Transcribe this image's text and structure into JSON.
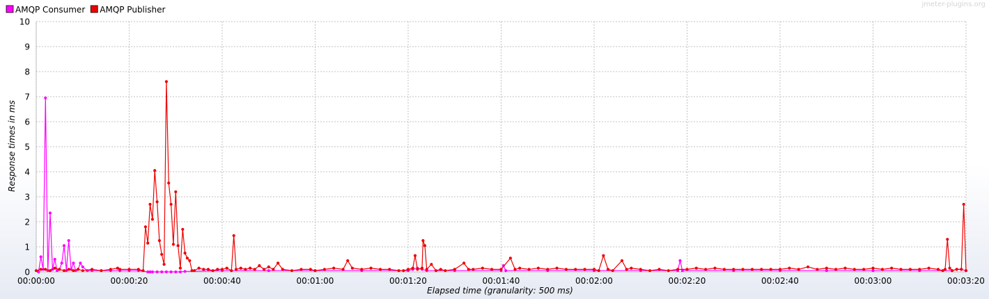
{
  "watermark": "jmeter-plugins.org",
  "chart_data": {
    "type": "line",
    "xlabel": "Elapsed time (granularity: 500 ms)",
    "ylabel": "Response times in ms",
    "ylim": [
      0,
      10
    ],
    "yticks": [
      0,
      1,
      2,
      3,
      4,
      5,
      6,
      7,
      8,
      9,
      10
    ],
    "xlim_seconds": [
      0,
      200
    ],
    "xticks": [
      "00:00:00",
      "00:00:20",
      "00:00:40",
      "00:01:00",
      "00:01:20",
      "00:01:40",
      "00:02:00",
      "00:02:20",
      "00:02:40",
      "00:03:00",
      "00:03:20"
    ],
    "grid": true,
    "legend_position": "top-left",
    "series": [
      {
        "name": "AMQP Consumer",
        "color": "#ff00ff",
        "points": [
          [
            0.5,
            0
          ],
          [
            1,
            0.6
          ],
          [
            1.5,
            0.1
          ],
          [
            2,
            6.95
          ],
          [
            2.5,
            0.05
          ],
          [
            3,
            2.35
          ],
          [
            3.5,
            0.1
          ],
          [
            4,
            0.5
          ],
          [
            4.5,
            0.05
          ],
          [
            5,
            0.1
          ],
          [
            5.5,
            0.35
          ],
          [
            6,
            1.05
          ],
          [
            6.5,
            0.05
          ],
          [
            7,
            1.25
          ],
          [
            7.5,
            0.1
          ],
          [
            8,
            0.35
          ],
          [
            8.5,
            0.05
          ],
          [
            9,
            0.1
          ],
          [
            9.5,
            0.35
          ],
          [
            10,
            0.2
          ],
          [
            11,
            0.05
          ],
          [
            12,
            0.05
          ],
          [
            14,
            0.05
          ],
          [
            16,
            0.05
          ],
          [
            18,
            0.05
          ],
          [
            20,
            0.05
          ],
          [
            22,
            0.05
          ],
          [
            24,
            0
          ],
          [
            24.5,
            0
          ],
          [
            25,
            0
          ],
          [
            26,
            0
          ],
          [
            27,
            0
          ],
          [
            28,
            0
          ],
          [
            29,
            0
          ],
          [
            30,
            0
          ],
          [
            31,
            0
          ],
          [
            32,
            0.02
          ],
          [
            40,
            0.05
          ],
          [
            50,
            0.05
          ],
          [
            60,
            0.05
          ],
          [
            70,
            0.05
          ],
          [
            80,
            0.05
          ],
          [
            81,
            0.1
          ],
          [
            82,
            0.15
          ],
          [
            83,
            0.1
          ],
          [
            84,
            0.05
          ],
          [
            90,
            0.05
          ],
          [
            100,
            0.05
          ],
          [
            100.5,
            0.25
          ],
          [
            101,
            0.05
          ],
          [
            110,
            0.05
          ],
          [
            120,
            0.05
          ],
          [
            130,
            0.05
          ],
          [
            138,
            0.05
          ],
          [
            138.5,
            0.45
          ],
          [
            139,
            0.05
          ],
          [
            150,
            0.05
          ],
          [
            160,
            0.05
          ],
          [
            170,
            0.05
          ],
          [
            180,
            0.05
          ],
          [
            190,
            0.05
          ],
          [
            197,
            0.05
          ],
          [
            198,
            0.1
          ],
          [
            199,
            0.1
          ],
          [
            200,
            0.05
          ]
        ]
      },
      {
        "name": "AMQP Publisher",
        "color": "#ee0000",
        "points": [
          [
            0,
            0.05
          ],
          [
            1,
            0.1
          ],
          [
            2,
            0.1
          ],
          [
            3,
            0.05
          ],
          [
            4,
            0.15
          ],
          [
            5,
            0.1
          ],
          [
            6,
            0.05
          ],
          [
            7,
            0.1
          ],
          [
            8,
            0.05
          ],
          [
            9,
            0.1
          ],
          [
            10,
            0.05
          ],
          [
            12,
            0.1
          ],
          [
            14,
            0.05
          ],
          [
            16,
            0.1
          ],
          [
            17.5,
            0.15
          ],
          [
            18,
            0.1
          ],
          [
            20,
            0.1
          ],
          [
            22,
            0.1
          ],
          [
            23,
            0.05
          ],
          [
            23.5,
            1.8
          ],
          [
            24,
            1.15
          ],
          [
            24.5,
            2.7
          ],
          [
            25,
            2.1
          ],
          [
            25.5,
            4.05
          ],
          [
            26,
            2.8
          ],
          [
            26.5,
            1.25
          ],
          [
            27,
            0.7
          ],
          [
            27.5,
            0.3
          ],
          [
            28,
            7.6
          ],
          [
            28.5,
            3.55
          ],
          [
            29,
            2.7
          ],
          [
            29.5,
            1.1
          ],
          [
            30,
            3.2
          ],
          [
            30.5,
            1.05
          ],
          [
            31,
            0.15
          ],
          [
            31.5,
            1.7
          ],
          [
            32,
            0.75
          ],
          [
            32.5,
            0.55
          ],
          [
            33,
            0.45
          ],
          [
            33.5,
            0.05
          ],
          [
            34,
            0.05
          ],
          [
            35,
            0.15
          ],
          [
            36,
            0.1
          ],
          [
            37,
            0.1
          ],
          [
            38,
            0.05
          ],
          [
            39,
            0.1
          ],
          [
            40,
            0.1
          ],
          [
            41,
            0.15
          ],
          [
            42,
            0.05
          ],
          [
            42.5,
            1.45
          ],
          [
            43,
            0.1
          ],
          [
            44,
            0.15
          ],
          [
            45,
            0.1
          ],
          [
            46,
            0.15
          ],
          [
            47,
            0.1
          ],
          [
            48,
            0.25
          ],
          [
            49,
            0.1
          ],
          [
            50,
            0.2
          ],
          [
            51,
            0.1
          ],
          [
            52,
            0.35
          ],
          [
            53,
            0.1
          ],
          [
            55,
            0.05
          ],
          [
            57,
            0.1
          ],
          [
            59,
            0.1
          ],
          [
            60,
            0.05
          ],
          [
            62,
            0.1
          ],
          [
            64,
            0.15
          ],
          [
            66,
            0.1
          ],
          [
            67,
            0.45
          ],
          [
            68,
            0.15
          ],
          [
            70,
            0.1
          ],
          [
            72,
            0.15
          ],
          [
            74,
            0.1
          ],
          [
            76,
            0.1
          ],
          [
            78,
            0.05
          ],
          [
            79,
            0.05
          ],
          [
            80,
            0.1
          ],
          [
            81,
            0.15
          ],
          [
            81.5,
            0.65
          ],
          [
            82,
            0.1
          ],
          [
            83,
            0.15
          ],
          [
            83.2,
            1.25
          ],
          [
            83.6,
            1.05
          ],
          [
            84,
            0.1
          ],
          [
            85,
            0.3
          ],
          [
            86,
            0.05
          ],
          [
            87,
            0.1
          ],
          [
            88,
            0.05
          ],
          [
            90,
            0.1
          ],
          [
            92,
            0.35
          ],
          [
            93,
            0.1
          ],
          [
            94,
            0.1
          ],
          [
            96,
            0.15
          ],
          [
            98,
            0.1
          ],
          [
            100,
            0.1
          ],
          [
            102,
            0.55
          ],
          [
            103,
            0.1
          ],
          [
            104,
            0.15
          ],
          [
            106,
            0.1
          ],
          [
            108,
            0.15
          ],
          [
            110,
            0.1
          ],
          [
            112,
            0.15
          ],
          [
            114,
            0.1
          ],
          [
            116,
            0.1
          ],
          [
            118,
            0.1
          ],
          [
            120,
            0.1
          ],
          [
            121,
            0.05
          ],
          [
            122,
            0.65
          ],
          [
            123,
            0.1
          ],
          [
            124,
            0.05
          ],
          [
            126,
            0.45
          ],
          [
            127,
            0.1
          ],
          [
            128,
            0.15
          ],
          [
            130,
            0.1
          ],
          [
            132,
            0.05
          ],
          [
            134,
            0.1
          ],
          [
            136,
            0.05
          ],
          [
            138,
            0.1
          ],
          [
            140,
            0.1
          ],
          [
            142,
            0.15
          ],
          [
            144,
            0.1
          ],
          [
            146,
            0.15
          ],
          [
            148,
            0.1
          ],
          [
            150,
            0.1
          ],
          [
            152,
            0.1
          ],
          [
            154,
            0.1
          ],
          [
            156,
            0.1
          ],
          [
            158,
            0.1
          ],
          [
            160,
            0.1
          ],
          [
            162,
            0.15
          ],
          [
            164,
            0.1
          ],
          [
            166,
            0.2
          ],
          [
            168,
            0.1
          ],
          [
            170,
            0.15
          ],
          [
            172,
            0.1
          ],
          [
            174,
            0.15
          ],
          [
            176,
            0.1
          ],
          [
            178,
            0.1
          ],
          [
            180,
            0.15
          ],
          [
            182,
            0.1
          ],
          [
            184,
            0.15
          ],
          [
            186,
            0.1
          ],
          [
            188,
            0.1
          ],
          [
            190,
            0.1
          ],
          [
            192,
            0.15
          ],
          [
            194,
            0.1
          ],
          [
            195,
            0.05
          ],
          [
            195.5,
            0.1
          ],
          [
            196,
            1.3
          ],
          [
            196.5,
            0.15
          ],
          [
            197,
            0.05
          ],
          [
            198,
            0.1
          ],
          [
            199,
            0.1
          ],
          [
            199.5,
            2.7
          ],
          [
            200,
            0.05
          ]
        ]
      }
    ]
  }
}
